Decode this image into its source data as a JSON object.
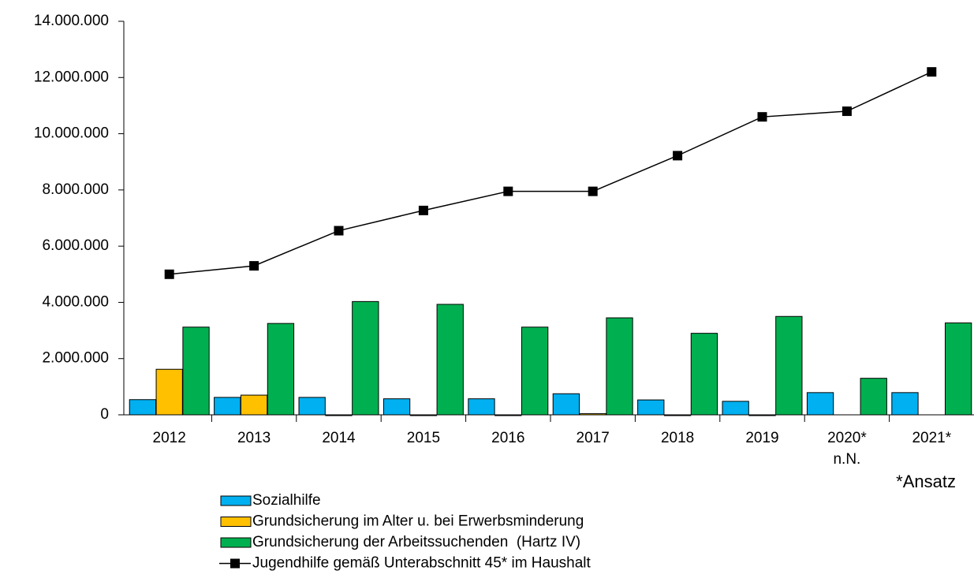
{
  "chart_data": {
    "type": "bar",
    "categories": [
      "2012",
      "2013",
      "2014",
      "2015",
      "2016",
      "2017",
      "2018",
      "2019",
      "2020*\nn.N.",
      "2021*"
    ],
    "series": [
      {
        "name": "Sozialhilfe",
        "type": "bar",
        "color": "#00b0f0",
        "values": [
          540000,
          620000,
          620000,
          570000,
          570000,
          750000,
          530000,
          480000,
          790000,
          790000
        ]
      },
      {
        "name": "Grundsicherung im Alter u. bei Erwerbsminderung",
        "type": "bar",
        "color": "#ffc000",
        "values": [
          1620000,
          700000,
          -20000,
          -20000,
          -20000,
          40000,
          -20000,
          -20000,
          null,
          null
        ]
      },
      {
        "name": "Grundsicherung der Arbeitssuchenden  (Hartz IV)",
        "type": "bar",
        "color": "#00b050",
        "values": [
          3120000,
          3250000,
          4030000,
          3930000,
          3120000,
          3450000,
          2900000,
          3500000,
          1300000,
          3270000
        ]
      },
      {
        "name": "Jugendhilfe gemäß Unterabschnitt 45* im Haushalt",
        "type": "line",
        "color": "#000000",
        "values": [
          5000000,
          5300000,
          6550000,
          7270000,
          7950000,
          7950000,
          9220000,
          10600000,
          10800000,
          12200000
        ]
      }
    ],
    "annotation": "*Ansatz",
    "ylim": [
      0,
      14000000
    ],
    "yticks": [
      0,
      {
        "value": 2000000,
        "label": "2.000.000"
      },
      {
        "value": 4000000,
        "label": "4.000.000"
      },
      {
        "value": 6000000,
        "label": "6.000.000"
      },
      {
        "value": 8000000,
        "label": "8.000.000"
      },
      {
        "value": 10000000,
        "label": "10.000.000"
      },
      {
        "value": 12000000,
        "label": "12.000.000"
      },
      {
        "value": 14000000,
        "label": "14.000.000"
      }
    ],
    "grid": false,
    "legend": "bottom"
  }
}
